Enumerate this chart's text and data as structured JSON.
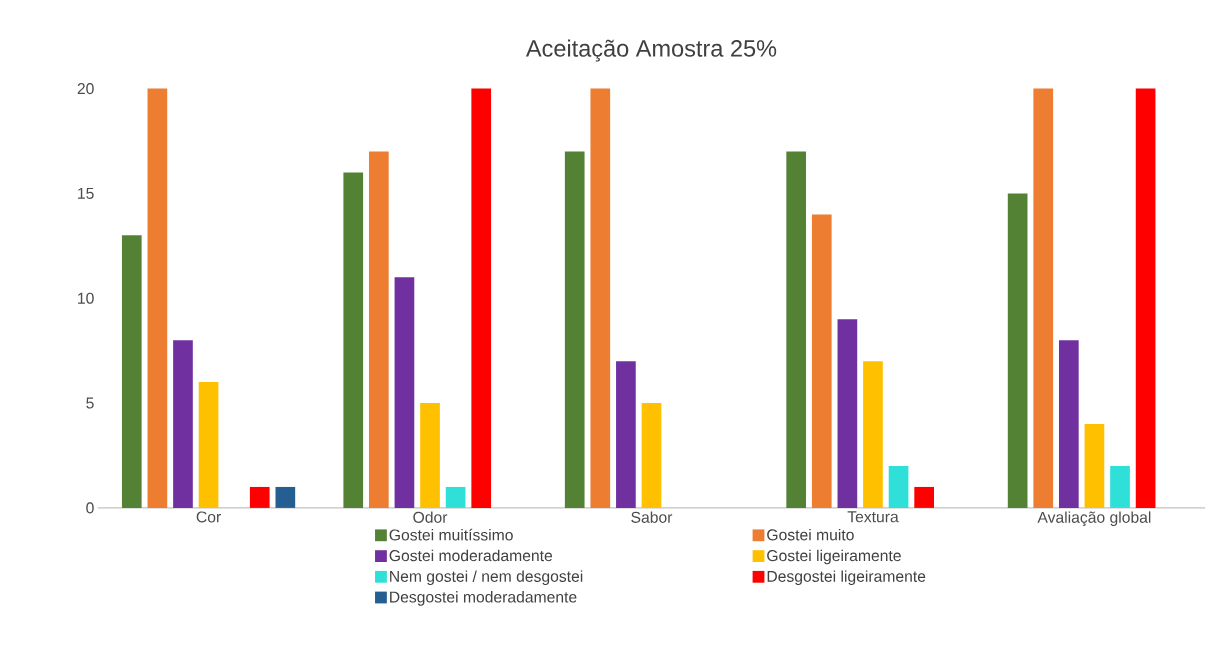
{
  "chart_data": {
    "type": "bar",
    "title": "Aceitação Amostra 25%",
    "categories": [
      "Cor",
      "Odor",
      "Sabor",
      "Textura",
      "Avaliação global"
    ],
    "series": [
      {
        "name": "Gostei muitíssimo",
        "color": "#548235",
        "values": [
          13,
          16,
          17,
          17,
          15
        ]
      },
      {
        "name": "Gostei muito",
        "color": "#ed7d31",
        "values": [
          20,
          17,
          20,
          14,
          20
        ]
      },
      {
        "name": "Gostei moderadamente",
        "color": "#7030a0",
        "values": [
          8,
          11,
          7,
          9,
          8
        ]
      },
      {
        "name": "Gostei ligeiramente",
        "color": "#ffc000",
        "values": [
          6,
          5,
          5,
          7,
          4
        ]
      },
      {
        "name": "Nem gostei / nem desgostei",
        "color": "#2ee0d8",
        "values": [
          null,
          1,
          null,
          2,
          2
        ]
      },
      {
        "name": "Desgostei ligeiramente",
        "color": "#ff0000",
        "values": [
          1,
          20,
          null,
          1,
          20
        ]
      },
      {
        "name": "Desgostei moderadamente",
        "color": "#255e91",
        "values": [
          1,
          null,
          null,
          null,
          null
        ]
      }
    ],
    "ylim": [
      0,
      20
    ],
    "yticks": [
      0,
      5,
      10,
      15,
      20
    ],
    "grid": false,
    "legend": "bottom"
  }
}
